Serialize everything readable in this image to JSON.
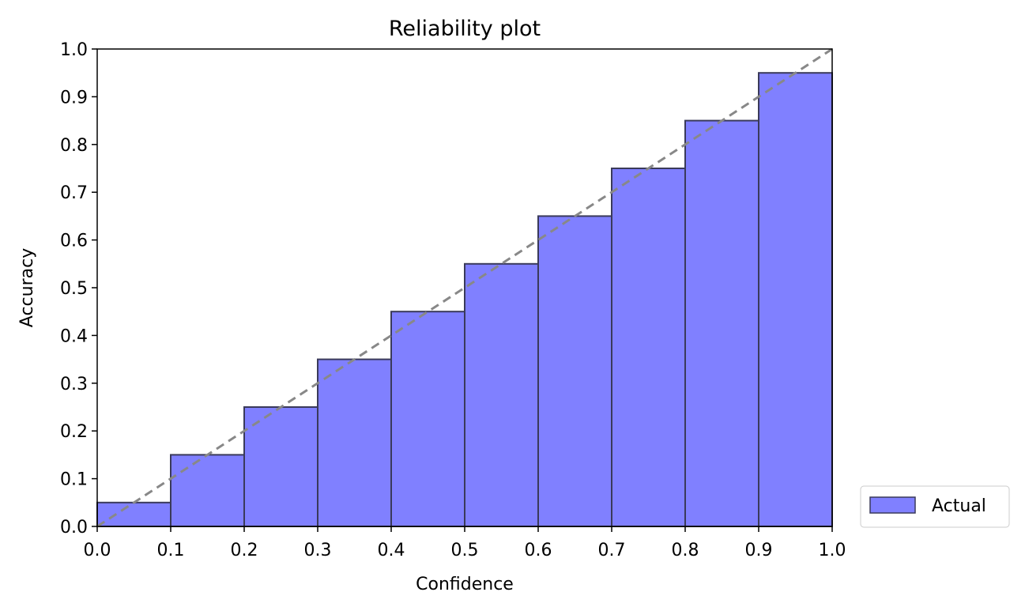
{
  "chart_data": {
    "type": "bar",
    "title": "Reliability plot",
    "xlabel": "Confidence",
    "ylabel": "Accuracy",
    "xlim": [
      0.0,
      1.0
    ],
    "ylim": [
      0.0,
      1.0
    ],
    "xticks": [
      "0.0",
      "0.1",
      "0.2",
      "0.3",
      "0.4",
      "0.5",
      "0.6",
      "0.7",
      "0.8",
      "0.9",
      "1.0"
    ],
    "yticks": [
      "0.0",
      "0.1",
      "0.2",
      "0.3",
      "0.4",
      "0.5",
      "0.6",
      "0.7",
      "0.8",
      "0.9",
      "1.0"
    ],
    "grid": false,
    "legend_position": "outside-bottom-right",
    "series": [
      {
        "name": "Actual",
        "color": "#8080ff",
        "edge_color": "#3a3a5a",
        "bins": [
          {
            "x0": 0.0,
            "x1": 0.1,
            "value": 0.05
          },
          {
            "x0": 0.1,
            "x1": 0.2,
            "value": 0.15
          },
          {
            "x0": 0.2,
            "x1": 0.3,
            "value": 0.25
          },
          {
            "x0": 0.3,
            "x1": 0.4,
            "value": 0.35
          },
          {
            "x0": 0.4,
            "x1": 0.5,
            "value": 0.45
          },
          {
            "x0": 0.5,
            "x1": 0.6,
            "value": 0.55
          },
          {
            "x0": 0.6,
            "x1": 0.7,
            "value": 0.65
          },
          {
            "x0": 0.7,
            "x1": 0.8,
            "value": 0.75
          },
          {
            "x0": 0.8,
            "x1": 0.9,
            "value": 0.85
          },
          {
            "x0": 0.9,
            "x1": 1.0,
            "value": 0.95
          }
        ]
      }
    ],
    "reference_line": {
      "style": "dashed",
      "color": "#888888",
      "points": [
        [
          0.0,
          0.0
        ],
        [
          1.0,
          1.0
        ]
      ]
    }
  }
}
